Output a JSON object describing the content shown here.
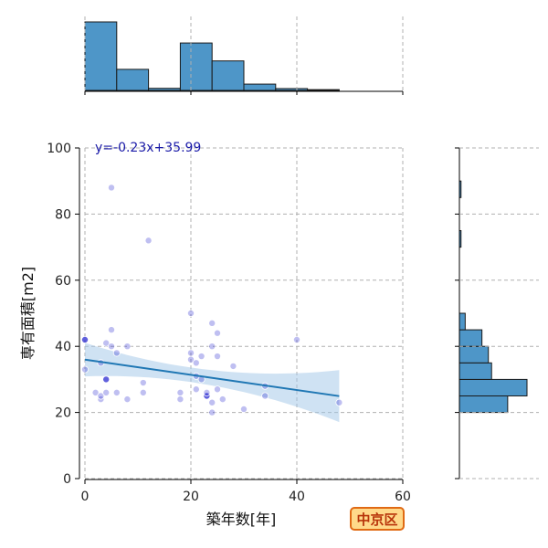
{
  "chart_data": {
    "type": "scatter",
    "xlabel": "築年数[年]",
    "ylabel": "専有面積[m2]",
    "xlim": [
      0,
      60
    ],
    "ylim": [
      0,
      100
    ],
    "x_ticks": [
      0,
      20,
      40,
      60
    ],
    "y_ticks": [
      0,
      20,
      40,
      60,
      80,
      100
    ],
    "grid": true,
    "regression": {
      "label": "y=-0.23x+35.99",
      "slope": -0.23,
      "intercept": 35.99,
      "x_range": [
        0,
        48
      ]
    },
    "points": [
      {
        "x": 0,
        "y": 42
      },
      {
        "x": 0,
        "y": 33
      },
      {
        "x": 2,
        "y": 26
      },
      {
        "x": 3,
        "y": 24
      },
      {
        "x": 3,
        "y": 25
      },
      {
        "x": 3,
        "y": 35
      },
      {
        "x": 4,
        "y": 41
      },
      {
        "x": 4,
        "y": 30
      },
      {
        "x": 4,
        "y": 26
      },
      {
        "x": 5,
        "y": 88
      },
      {
        "x": 5,
        "y": 45
      },
      {
        "x": 5,
        "y": 40
      },
      {
        "x": 6,
        "y": 38
      },
      {
        "x": 6,
        "y": 26
      },
      {
        "x": 8,
        "y": 24
      },
      {
        "x": 8,
        "y": 40
      },
      {
        "x": 11,
        "y": 29
      },
      {
        "x": 11,
        "y": 26
      },
      {
        "x": 12,
        "y": 72
      },
      {
        "x": 18,
        "y": 26
      },
      {
        "x": 18,
        "y": 24
      },
      {
        "x": 20,
        "y": 50
      },
      {
        "x": 20,
        "y": 38
      },
      {
        "x": 20,
        "y": 36
      },
      {
        "x": 21,
        "y": 31
      },
      {
        "x": 21,
        "y": 27
      },
      {
        "x": 21,
        "y": 35
      },
      {
        "x": 22,
        "y": 30
      },
      {
        "x": 22,
        "y": 37
      },
      {
        "x": 23,
        "y": 25
      },
      {
        "x": 23,
        "y": 26
      },
      {
        "x": 24,
        "y": 47
      },
      {
        "x": 24,
        "y": 40
      },
      {
        "x": 24,
        "y": 23
      },
      {
        "x": 24,
        "y": 20
      },
      {
        "x": 25,
        "y": 44
      },
      {
        "x": 25,
        "y": 37
      },
      {
        "x": 25,
        "y": 27
      },
      {
        "x": 26,
        "y": 24
      },
      {
        "x": 28,
        "y": 34
      },
      {
        "x": 30,
        "y": 21
      },
      {
        "x": 34,
        "y": 28
      },
      {
        "x": 34,
        "y": 25
      },
      {
        "x": 40,
        "y": 42
      },
      {
        "x": 48,
        "y": 23
      }
    ],
    "x_hist": {
      "bins": [
        0,
        6,
        12,
        18,
        24,
        30,
        36,
        42,
        48
      ],
      "counts": [
        13,
        4,
        0.4,
        9,
        5.6,
        1.2,
        0.35,
        0.15
      ]
    },
    "y_hist": {
      "bins": [
        20,
        25,
        30,
        35,
        40,
        45,
        50,
        55,
        60,
        65,
        70,
        75,
        80,
        85,
        90
      ],
      "counts": [
        15,
        21,
        10,
        9,
        7,
        1.8,
        0,
        0,
        0,
        0,
        0.5,
        0,
        0,
        0.5
      ]
    },
    "colors": {
      "point": "#2b2bd1",
      "line": "#1f77b4",
      "band": "#9fc5e8",
      "hist": "#4e96c8"
    }
  },
  "badge": {
    "label": "中京区"
  }
}
